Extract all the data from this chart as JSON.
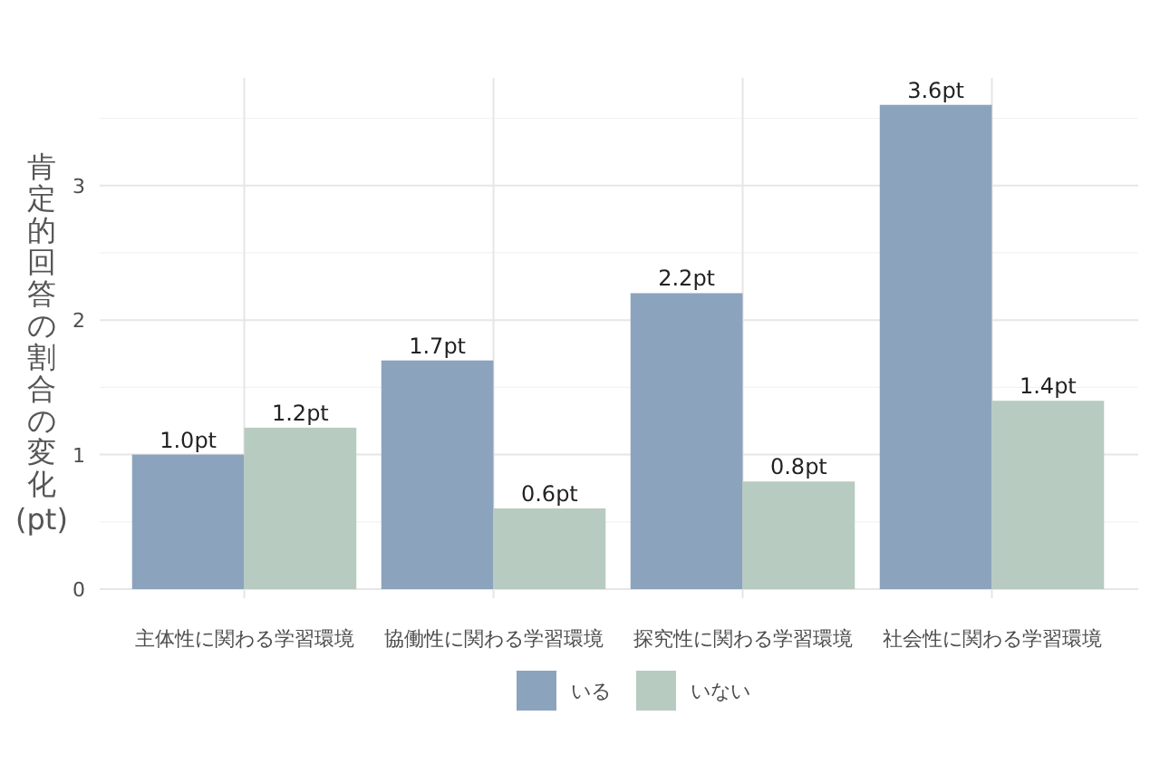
{
  "chart_data": {
    "type": "bar",
    "ylabel": "肯定的回答の割合の変化(pt)",
    "categories": [
      "主体性に関わる学習環境",
      "協働性に関わる学習環境",
      "探究性に関わる学習環境",
      "社会性に関わる学習環境"
    ],
    "series": [
      {
        "name": "いる",
        "color": "#8ca3bd",
        "values": [
          1.0,
          1.7,
          2.2,
          3.6
        ],
        "value_labels": [
          "1.0pt",
          "1.7pt",
          "2.2pt",
          "3.6pt"
        ]
      },
      {
        "name": "いない",
        "color": "#b8cbc1",
        "values": [
          1.2,
          0.6,
          0.8,
          1.4
        ],
        "value_labels": [
          "1.2pt",
          "0.6pt",
          "0.8pt",
          "1.4pt"
        ]
      }
    ],
    "ylim": [
      0,
      3.8
    ],
    "yticks": [
      0,
      {
        "value": 0.5,
        "label": null
      },
      1,
      {
        "value": 1.5,
        "label": null
      },
      2,
      {
        "value": 2.5,
        "label": null
      },
      3,
      {
        "value": 3.5,
        "label": null
      }
    ],
    "grid": true,
    "legend": "bottom"
  }
}
